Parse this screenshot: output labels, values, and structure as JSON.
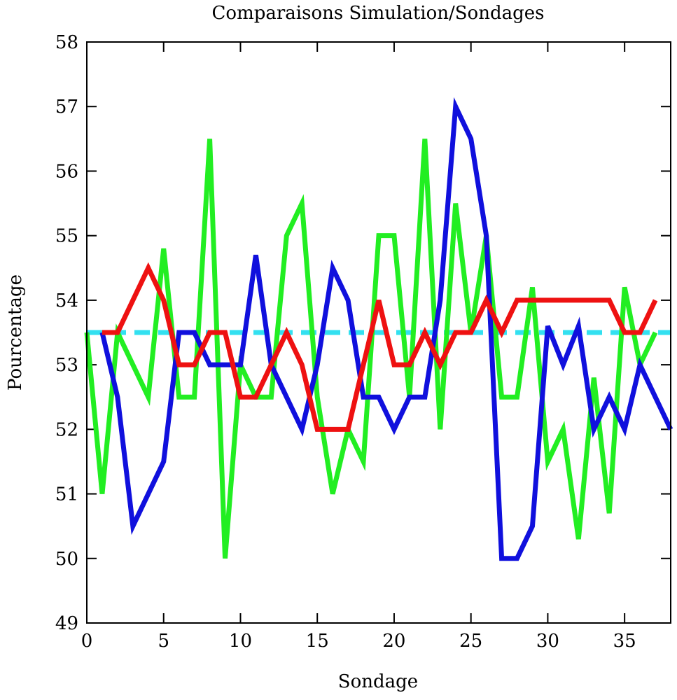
{
  "chart_data": {
    "type": "line",
    "title": "Comparaisons Simulation/Sondages",
    "xlabel": "Sondage",
    "ylabel": "Pourcentage",
    "xlim": [
      0,
      38
    ],
    "ylim": [
      49,
      58
    ],
    "xticks": [
      0,
      5,
      10,
      15,
      20,
      25,
      30,
      35
    ],
    "yticks": [
      49,
      50,
      51,
      52,
      53,
      54,
      55,
      56,
      57,
      58
    ],
    "grid": false,
    "reference": {
      "y": 53.5,
      "color": "#33e0f0",
      "style": "dashed"
    },
    "series": [
      {
        "color": "#22ee22",
        "x": [
          0,
          1,
          2,
          3,
          4,
          5,
          6,
          7,
          8,
          9,
          10,
          11,
          12,
          13,
          14,
          15,
          16,
          17,
          18,
          19,
          20,
          21,
          22,
          23,
          24,
          25,
          26,
          27,
          28,
          29,
          30,
          31,
          32,
          33,
          34,
          35,
          36,
          37
        ],
        "values": [
          53.5,
          51,
          53.5,
          53,
          52.5,
          54.8,
          52.5,
          52.5,
          56.5,
          50,
          53,
          52.5,
          52.5,
          55,
          55.5,
          52.5,
          51,
          52,
          51.5,
          55,
          55,
          52.5,
          56.5,
          52,
          55.5,
          53.5,
          55,
          52.5,
          52.5,
          54.2,
          51.5,
          52,
          50.3,
          52.8,
          50.7,
          54.2,
          53,
          53.5
        ]
      },
      {
        "color": "#1010dd",
        "x": [
          1,
          2,
          3,
          4,
          5,
          6,
          7,
          8,
          9,
          10,
          11,
          12,
          13,
          14,
          15,
          16,
          17,
          18,
          19,
          20,
          21,
          22,
          23,
          24,
          25,
          26,
          27,
          28,
          29,
          30,
          31,
          32,
          33,
          34,
          35,
          36,
          37,
          38
        ],
        "values": [
          53.5,
          52.5,
          50.5,
          51,
          51.5,
          53.5,
          53.5,
          53,
          53,
          53,
          54.7,
          53,
          52.5,
          52,
          53,
          54.5,
          54,
          52.5,
          52.5,
          52,
          52.5,
          52.5,
          54,
          57,
          56.5,
          55,
          50,
          50,
          50.5,
          53.6,
          53,
          53.6,
          52,
          52.5,
          52,
          53,
          52.5,
          52
        ]
      },
      {
        "color": "#ee1111",
        "x": [
          1,
          2,
          3,
          4,
          5,
          6,
          7,
          8,
          9,
          10,
          11,
          12,
          13,
          14,
          15,
          16,
          17,
          18,
          19,
          20,
          21,
          22,
          23,
          24,
          25,
          26,
          27,
          28,
          29,
          30,
          31,
          32,
          33,
          34,
          35,
          36,
          37
        ],
        "values": [
          53.5,
          53.5,
          54,
          54.5,
          54,
          53,
          53,
          53.5,
          53.5,
          52.5,
          52.5,
          53,
          53.5,
          53,
          52,
          52,
          52,
          53,
          54,
          53,
          53,
          53.5,
          53,
          53.5,
          53.5,
          54,
          53.5,
          54,
          54,
          54,
          54,
          54,
          54,
          54,
          53.5,
          53.5,
          54
        ]
      }
    ]
  }
}
